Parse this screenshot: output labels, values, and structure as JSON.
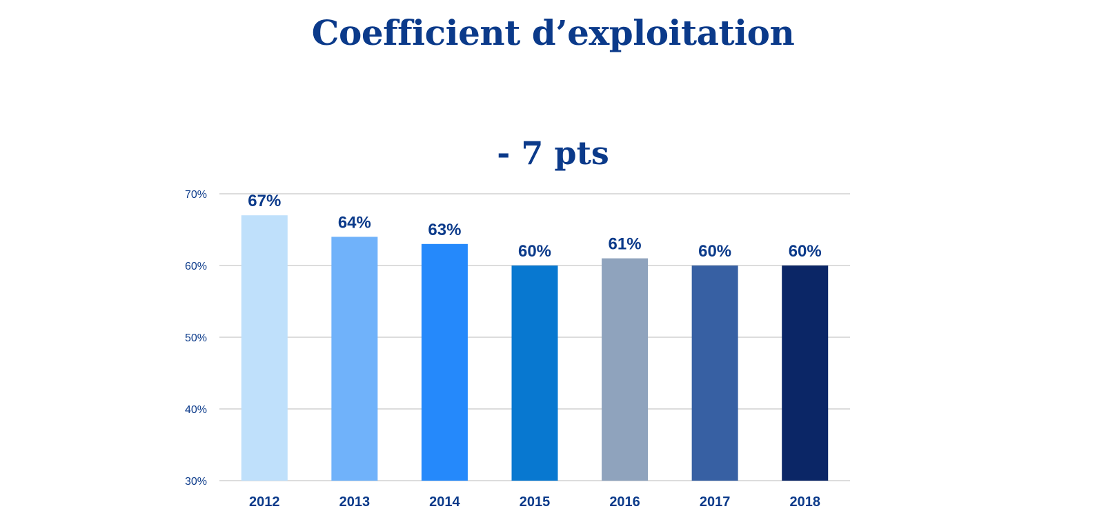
{
  "chart_data": {
    "type": "bar",
    "title": "Coefficient d’exploitation",
    "subtitle": "- 7 pts",
    "categories": [
      "2012",
      "2013",
      "2014",
      "2015",
      "2016",
      "2017",
      "2018"
    ],
    "values": [
      67,
      64,
      63,
      60,
      61,
      60,
      60
    ],
    "data_labels": [
      "67%",
      "64%",
      "63%",
      "60%",
      "61%",
      "60%",
      "60%"
    ],
    "bar_colors": [
      "#bfe0fb",
      "#70b2fa",
      "#2589fb",
      "#0878d0",
      "#8fa3bd",
      "#3760a3",
      "#0b2666"
    ],
    "y_ticks": [
      30,
      40,
      50,
      60,
      70
    ],
    "y_tick_labels": [
      "30%",
      "40%",
      "50%",
      "60%",
      "70%"
    ],
    "ylim": [
      30,
      70
    ],
    "xlabel": "",
    "ylabel": "",
    "grid": true,
    "legend": "none"
  }
}
